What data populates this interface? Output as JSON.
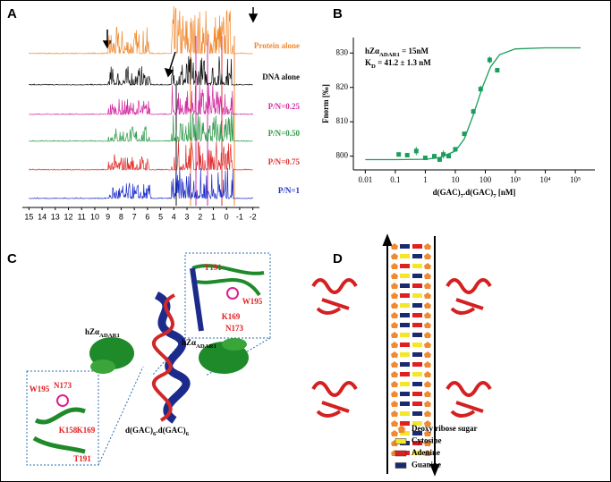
{
  "panels": [
    "A",
    "B",
    "C",
    "D"
  ],
  "panel_a": {
    "xlim": [
      15.5,
      -2.5
    ],
    "xticks": [
      15,
      14,
      13,
      12,
      11,
      10,
      9,
      8,
      7,
      6,
      5,
      4,
      3,
      2,
      1,
      0,
      -1,
      -2
    ],
    "traces": [
      {
        "name": "Protein alone",
        "color": "#f08a30"
      },
      {
        "name": "DNA alone",
        "color": "#111111"
      },
      {
        "name": "P/N=0.25",
        "color": "#d12ca0"
      },
      {
        "name": "P/N=0.50",
        "color": "#2e9a4a"
      },
      {
        "name": "P/N=0.75",
        "color": "#e03030"
      },
      {
        "name": "P/N=1",
        "color": "#2030c8"
      }
    ]
  },
  "chart_data": {
    "type": "scatter",
    "xscale": "log",
    "color": "#1a9e5c",
    "annotations": [
      [
        {
          "text": "hZα"
        },
        {
          "sub": "ADAR1"
        },
        {
          "text": " = 15nM"
        }
      ],
      [
        {
          "text": "K"
        },
        {
          "sub": "D"
        },
        {
          "text": " = 41.2 ± 1.3 nM"
        }
      ]
    ],
    "ylabel": "Fnorm [‰]",
    "xlabel": [
      {
        "text": "d(GAC)"
      },
      {
        "sub": "7"
      },
      {
        "text": ".d(GAC)"
      },
      {
        "sub": "7"
      },
      {
        "text": " [nM]"
      }
    ],
    "x": [
      0.13,
      0.25,
      0.5,
      1,
      2,
      3,
      4,
      6,
      10,
      20,
      40,
      70,
      140,
      250
    ],
    "values": [
      800.5,
      800.3,
      801.5,
      799.5,
      800,
      799,
      800.5,
      800,
      802,
      806.5,
      813,
      819.5,
      828,
      825
    ],
    "errors": [
      0.3,
      0.3,
      1.2,
      0.4,
      0.5,
      0.5,
      1.2,
      0.6,
      0.6,
      0.5,
      0.8,
      1,
      1,
      0.4
    ],
    "fit": {
      "x": [
        0.01,
        0.1,
        1,
        3,
        10,
        20,
        40,
        80,
        150,
        300,
        1000,
        10000,
        100000,
        150000
      ],
      "y": [
        799,
        799,
        799.1,
        799.6,
        801.5,
        805,
        812,
        820,
        826,
        829.5,
        831.2,
        831.5,
        831.5,
        831.5
      ]
    },
    "xlim": [
      0.004,
      450000
    ],
    "ylim": [
      796,
      834.5
    ],
    "xticks": [
      0.01,
      0.1,
      1,
      10,
      100,
      {
        "value": 1000,
        "label": "10³"
      },
      {
        "value": 10000,
        "label": "10⁴"
      },
      {
        "value": 100000,
        "label": "10⁵"
      }
    ],
    "yticks": [
      800,
      810,
      820,
      830
    ]
  },
  "panel_c": {
    "protein_labels": [
      [
        {
          "text": "hZα"
        },
        {
          "sub": "ADAR1"
        }
      ],
      [
        {
          "text": "hZα"
        },
        {
          "sub": "ADAR1"
        }
      ]
    ],
    "dna_label": [
      {
        "text": "d(GAC)"
      },
      {
        "sub": "6"
      },
      {
        "text": ".d(GAC)"
      },
      {
        "sub": "6"
      }
    ],
    "residues_upper": [
      "T191",
      "K169",
      "N173",
      "W195"
    ],
    "residues_lower": [
      "W195",
      "N173",
      "K158",
      "K169",
      "T191"
    ]
  },
  "panel_d": {
    "legend": [
      {
        "name": "Deoxy ribose sugar",
        "color": "#f08a30"
      },
      {
        "name": "Cytosine",
        "color": "#f5e62a"
      },
      {
        "name": "Adenine",
        "color": "#e02020"
      },
      {
        "name": "Guanine",
        "color": "#1a2a6e"
      }
    ]
  }
}
